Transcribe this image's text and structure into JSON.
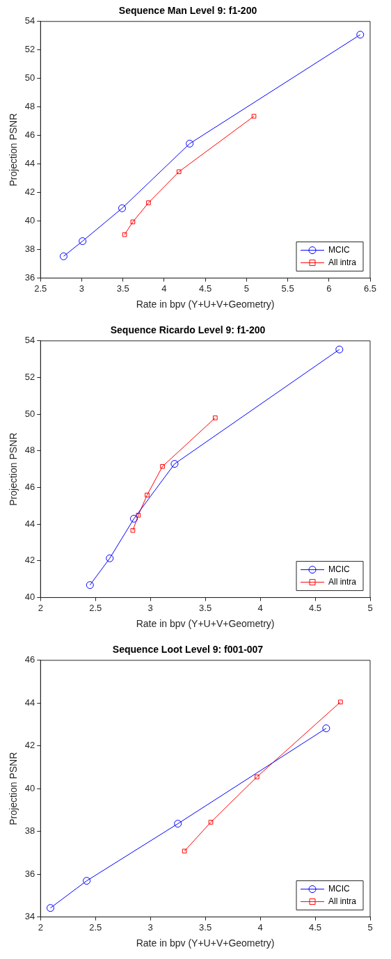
{
  "chart_data": [
    {
      "type": "line",
      "title": "Sequence Man Level 9: f1-200",
      "xlabel": "Rate in bpv (Y+U+V+Geometry)",
      "ylabel": "Projection PSNR",
      "xlim": [
        2.5,
        6.5
      ],
      "xticks": [
        2.5,
        3,
        3.5,
        4,
        4.5,
        5,
        5.5,
        6,
        6.5
      ],
      "ylim": [
        36,
        54
      ],
      "yticks": [
        36,
        38,
        40,
        42,
        44,
        46,
        48,
        50,
        52,
        54
      ],
      "grid": false,
      "legend": "bottom right",
      "line_style": "solid",
      "series": [
        {
          "name": "MCIC",
          "color": "#0000ff",
          "marker": "circle",
          "x": [
            2.78,
            3.01,
            3.49,
            4.31,
            6.38
          ],
          "values": [
            37.53,
            38.59,
            40.9,
            45.43,
            53.07
          ]
        },
        {
          "name": "All intra",
          "color": "#ff0000",
          "marker": "square",
          "x": [
            3.52,
            3.62,
            3.81,
            4.18,
            5.09
          ],
          "values": [
            39.05,
            39.94,
            41.28,
            43.46,
            47.35
          ]
        }
      ]
    },
    {
      "type": "line",
      "title": "Sequence Ricardo Level 9: f1-200",
      "xlabel": "Rate in bpv (Y+U+V+Geometry)",
      "ylabel": "Projection PSNR",
      "xlim": [
        2,
        5
      ],
      "xticks": [
        2,
        2.5,
        3,
        3.5,
        4,
        4.5,
        5
      ],
      "ylim": [
        40,
        54
      ],
      "yticks": [
        40,
        42,
        44,
        46,
        48,
        50,
        52,
        54
      ],
      "grid": false,
      "legend": "bottom right",
      "line_style": "solid",
      "series": [
        {
          "name": "MCIC",
          "color": "#0000ff",
          "marker": "circle",
          "x": [
            2.45,
            2.63,
            2.85,
            3.22,
            4.72
          ],
          "values": [
            40.68,
            42.14,
            44.3,
            47.29,
            53.53
          ]
        },
        {
          "name": "All intra",
          "color": "#ff0000",
          "marker": "square",
          "x": [
            2.84,
            2.89,
            2.97,
            3.11,
            3.59
          ],
          "values": [
            43.66,
            44.49,
            45.59,
            47.15,
            49.8
          ]
        }
      ]
    },
    {
      "type": "line",
      "title": "Sequence Loot Level 9: f001-007",
      "xlabel": "Rate in bpv (Y+U+V+Geometry)",
      "ylabel": "Projection PSNR",
      "xlim": [
        2,
        5
      ],
      "xticks": [
        2,
        2.5,
        3,
        3.5,
        4,
        4.5,
        5
      ],
      "ylim": [
        34,
        46
      ],
      "yticks": [
        34,
        36,
        38,
        40,
        42,
        44,
        46
      ],
      "grid": false,
      "legend": "bottom right",
      "line_style": "solid",
      "series": [
        {
          "name": "MCIC",
          "color": "#0000ff",
          "marker": "circle",
          "x": [
            2.09,
            2.42,
            3.25,
            4.6
          ],
          "values": [
            34.42,
            35.69,
            38.36,
            42.82
          ]
        },
        {
          "name": "All intra",
          "color": "#ff0000",
          "marker": "square",
          "x": [
            3.31,
            3.55,
            3.97,
            4.73
          ],
          "values": [
            37.08,
            38.43,
            40.55,
            44.05
          ]
        }
      ]
    }
  ]
}
